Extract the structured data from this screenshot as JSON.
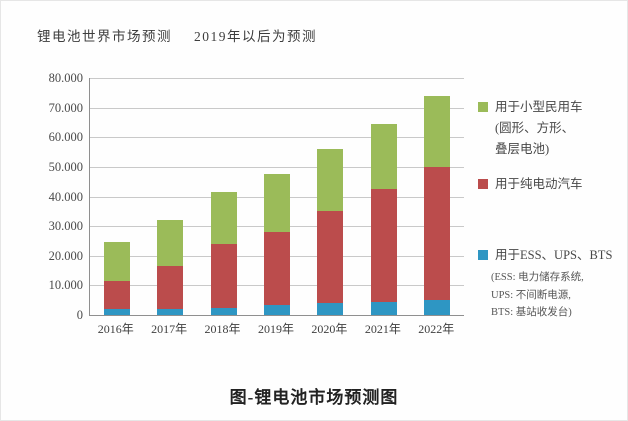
{
  "header": {
    "title": "锂电池世界市场预测",
    "note": "2019年以后为预测"
  },
  "caption": "图-锂电池市场预测图",
  "colors": {
    "small_vehicle_green": "#9bbb59",
    "ev_red": "#bb4c4c",
    "ess_blue": "#2e96c3",
    "gridline": "#c9c9c9",
    "axis": "#8f8f8f"
  },
  "chart_data": {
    "type": "bar",
    "stacked": true,
    "title": "锂电池世界市场预测 2019年以后为预测",
    "categories": [
      "2016年",
      "2017年",
      "2018年",
      "2019年",
      "2020年",
      "2021年",
      "2022年"
    ],
    "series": [
      {
        "name": "用于ESS、UPS、BTS",
        "color": "#2e96c3",
        "values": [
          2000,
          2000,
          2500,
          3500,
          4000,
          4500,
          5000
        ]
      },
      {
        "name": "用于纯电动汽车",
        "color": "#bb4c4c",
        "values": [
          9500,
          14500,
          21500,
          24500,
          31000,
          38000,
          45000
        ]
      },
      {
        "name": "用于小型民用车（圆形、方形、叠层电池）",
        "color": "#9bbb59",
        "values": [
          13000,
          15500,
          17500,
          19500,
          21000,
          22000,
          24000
        ]
      }
    ],
    "totals": [
      24500,
      32000,
      41500,
      47500,
      56000,
      64500,
      74000
    ],
    "xlabel": "",
    "ylabel": "",
    "ylim": [
      0,
      80000
    ],
    "ytick_interval": 10000,
    "ytick_labels": [
      "0",
      "10.000",
      "20.000",
      "30.000",
      "40.000",
      "50.000",
      "60.000",
      "70.000",
      "80.000"
    ],
    "grid": true,
    "legend_position": "right"
  },
  "legend": {
    "items": [
      {
        "color": "#9bbb59",
        "lines": [
          "用于小型民用车",
          "(圆形、方形、",
          "叠层电池)"
        ],
        "sublines": []
      },
      {
        "color": "#bb4c4c",
        "lines": [
          "用于纯电动汽车"
        ],
        "sublines": []
      },
      {
        "color": "#2e96c3",
        "lines": [
          "用于ESS、UPS、BTS"
        ],
        "sublines": [
          "(ESS: 电力储存系统,",
          "UPS: 不间断电源,",
          "BTS: 基站收发台)"
        ]
      }
    ]
  }
}
